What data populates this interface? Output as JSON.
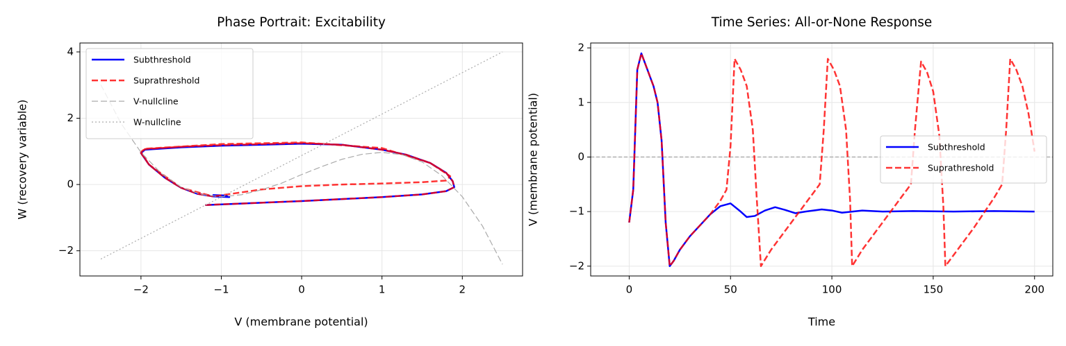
{
  "chart_data": [
    {
      "type": "line",
      "title": "Phase Portrait: Excitability",
      "xlabel": "V (membrane potential)",
      "ylabel": "W (recovery variable)",
      "xlim": [
        -2.76,
        2.75
      ],
      "ylim": [
        -2.76,
        4.27
      ],
      "xticks": [
        {
          "value": -2,
          "label": "−2"
        },
        {
          "value": -1,
          "label": "−1"
        },
        0,
        1,
        2
      ],
      "yticks": [
        {
          "value": -2,
          "label": "−2"
        },
        0,
        2,
        4
      ],
      "grid": true,
      "legend": "upper left",
      "series": [
        {
          "name": "Subthreshold",
          "color": "#0000ff",
          "linestyle": "solid",
          "linewidth": 2.5,
          "x": [
            -1.2,
            -0.5,
            0,
            0.5,
            1.0,
            1.5,
            1.8,
            1.9,
            1.88,
            1.8,
            1.6,
            1.3,
            1.0,
            0.5,
            0,
            -0.5,
            -1,
            -1.5,
            -1.95,
            -2.0,
            -1.9,
            -1.7,
            -1.5,
            -1.3,
            -1.1,
            -0.9,
            -0.95,
            -1.1,
            -1.0
          ],
          "values": [
            -0.62,
            -0.55,
            -0.5,
            -0.44,
            -0.38,
            -0.3,
            -0.2,
            -0.08,
            0.1,
            0.35,
            0.65,
            0.9,
            1.05,
            1.2,
            1.23,
            1.2,
            1.17,
            1.12,
            1.05,
            0.95,
            0.6,
            0.2,
            -0.1,
            -0.28,
            -0.36,
            -0.38,
            -0.33,
            -0.32,
            -0.38
          ]
        },
        {
          "name": "Suprathreshold",
          "color": "#ff0000",
          "linestyle": "dashed",
          "linewidth": 2.5,
          "x": [
            -1.2,
            -0.5,
            0,
            0.5,
            1.0,
            1.5,
            1.8,
            1.9,
            1.88,
            1.8,
            1.6,
            1.3,
            1.0,
            0.5,
            0,
            -0.5,
            -1,
            -1.5,
            -1.95,
            -2.0,
            -1.9,
            -1.7,
            -1.5,
            -1.3,
            -1.1,
            -0.5,
            0,
            0.5,
            1.0,
            1.5,
            1.8,
            1.85,
            1.6,
            1.0,
            0,
            -1,
            -1.95,
            -2.0,
            -1.9,
            -1.5,
            -1.1
          ],
          "values": [
            -0.62,
            -0.55,
            -0.5,
            -0.44,
            -0.38,
            -0.3,
            -0.2,
            -0.08,
            0.1,
            0.35,
            0.65,
            0.9,
            1.05,
            1.2,
            1.25,
            1.22,
            1.19,
            1.14,
            1.07,
            0.95,
            0.6,
            0.2,
            -0.1,
            -0.28,
            -0.36,
            -0.15,
            -0.05,
            0.0,
            0.03,
            0.07,
            0.12,
            0.25,
            0.65,
            1.1,
            1.27,
            1.22,
            1.08,
            0.98,
            0.6,
            -0.1,
            -0.36
          ]
        },
        {
          "name": "V-nullcline",
          "color": "#aaaaaa",
          "linestyle": "dashed",
          "linewidth": 1.2,
          "x": [
            -2.5,
            -2.25,
            -2,
            -1.75,
            -1.5,
            -1.25,
            -1,
            -0.75,
            -0.5,
            -0.25,
            0,
            0.25,
            0.5,
            0.75,
            1,
            1.25,
            1.5,
            1.75,
            2,
            2.25,
            2.5
          ],
          "values": [
            3.01,
            1.85,
            0.97,
            0.34,
            -0.08,
            -0.3,
            -0.37,
            -0.31,
            -0.16,
            0.04,
            0.3,
            0.54,
            0.76,
            0.91,
            0.97,
            0.9,
            0.68,
            0.26,
            -0.37,
            -1.25,
            -2.41
          ]
        },
        {
          "name": "W-nullcline",
          "color": "#aaaaaa",
          "linestyle": "dotted",
          "linewidth": 1.2,
          "x": [
            -2.5,
            -1.5,
            -0.5,
            0.5,
            1.5,
            2.5
          ],
          "values": [
            -2.25,
            -1.0,
            0.25,
            1.5,
            2.75,
            4.0
          ]
        }
      ]
    },
    {
      "type": "line",
      "title": "Time Series: All-or-None Response",
      "xlabel": "Time",
      "ylabel": "V (membrane potential)",
      "xlim": [
        -19,
        209
      ],
      "ylim": [
        -2.18,
        2.09
      ],
      "xticks": [
        0,
        50,
        100,
        150,
        200
      ],
      "yticks": [
        {
          "value": -2,
          "label": "−2"
        },
        {
          "value": -1,
          "label": "−1"
        },
        0,
        1,
        2
      ],
      "grid": true,
      "legend": "center right",
      "reference_line": 0,
      "series": [
        {
          "name": "Subthreshold",
          "color": "#0000ff",
          "linestyle": "solid",
          "linewidth": 2.5,
          "x": [
            0,
            2,
            4,
            6,
            8,
            10,
            12,
            14,
            16,
            18,
            20,
            22,
            25,
            30,
            35,
            40,
            45,
            50,
            55,
            58,
            62,
            67,
            72,
            77,
            82,
            87,
            95,
            100,
            105,
            115,
            125,
            140,
            160,
            180,
            200
          ],
          "values": [
            -1.2,
            -0.6,
            1.6,
            1.9,
            1.7,
            1.5,
            1.3,
            1.0,
            0.3,
            -1.2,
            -2.0,
            -1.9,
            -1.7,
            -1.45,
            -1.25,
            -1.05,
            -0.9,
            -0.85,
            -1.0,
            -1.1,
            -1.08,
            -0.98,
            -0.92,
            -0.97,
            -1.03,
            -1.0,
            -0.96,
            -0.98,
            -1.02,
            -0.98,
            -1.0,
            -0.99,
            -1.0,
            -0.99,
            -1.0
          ]
        },
        {
          "name": "Suprathreshold",
          "color": "#ff0000",
          "linestyle": "dashed",
          "linewidth": 2.5,
          "x": [
            0,
            2,
            4,
            6,
            8,
            10,
            12,
            14,
            16,
            18,
            20,
            22,
            25,
            30,
            35,
            40,
            45,
            48,
            50,
            52,
            55,
            58,
            61,
            63,
            65,
            70,
            80,
            88,
            94,
            96,
            98,
            101,
            104,
            107,
            109,
            110,
            115,
            125,
            133,
            139,
            141,
            144,
            147,
            150,
            153,
            155,
            156,
            160,
            170,
            180,
            184,
            186,
            188,
            191,
            194,
            197,
            200
          ],
          "values": [
            -1.2,
            -0.6,
            1.6,
            1.9,
            1.7,
            1.5,
            1.3,
            1.0,
            0.3,
            -1.2,
            -2.0,
            -1.9,
            -1.7,
            -1.45,
            -1.25,
            -1.05,
            -0.8,
            -0.6,
            0.2,
            1.8,
            1.6,
            1.3,
            0.5,
            -0.8,
            -2.0,
            -1.7,
            -1.2,
            -0.8,
            -0.5,
            0.5,
            1.8,
            1.6,
            1.3,
            0.5,
            -0.8,
            -2.0,
            -1.7,
            -1.2,
            -0.8,
            -0.5,
            0.5,
            1.75,
            1.55,
            1.2,
            0.4,
            -0.9,
            -2.0,
            -1.8,
            -1.3,
            -0.75,
            -0.5,
            0.5,
            1.8,
            1.6,
            1.3,
            0.8,
            0.1
          ]
        }
      ]
    }
  ]
}
